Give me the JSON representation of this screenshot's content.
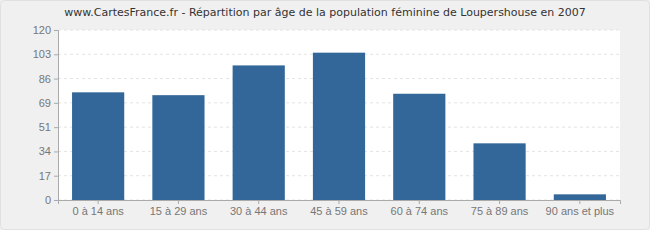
{
  "chart_data": {
    "type": "bar",
    "title": "www.CartesFrance.fr - Répartition par âge de la population féminine de Loupershouse en 2007",
    "categories": [
      "0 à 14 ans",
      "15 à 29 ans",
      "30 à 44 ans",
      "45 à 59 ans",
      "60 à 74 ans",
      "75 à 89 ans",
      "90 ans et plus"
    ],
    "values": [
      76,
      74,
      95,
      104,
      75,
      40,
      4
    ],
    "color": "#336699",
    "ylim": [
      0,
      120
    ],
    "yticks": [
      0,
      {
        "value": 17.14,
        "label": "17"
      },
      {
        "value": 34.29,
        "label": "34"
      },
      {
        "value": 51.43,
        "label": "51"
      },
      {
        "value": 68.57,
        "label": "69"
      },
      {
        "value": 85.71,
        "label": "86"
      },
      {
        "value": 102.86,
        "label": "103"
      },
      120
    ],
    "grid": true
  }
}
